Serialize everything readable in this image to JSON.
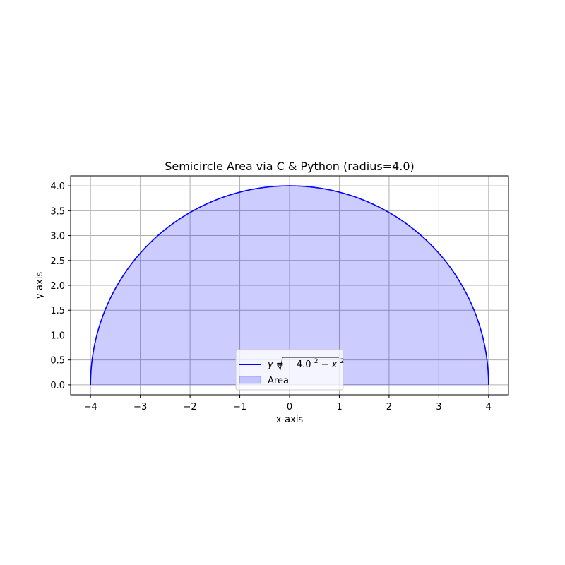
{
  "chart_data": {
    "type": "area",
    "title": "Semicircle Area via C & Python (radius=4.0)",
    "xlabel": "x-axis",
    "ylabel": "y-axis",
    "radius": 4.0,
    "xlim": [
      -4.4,
      4.4
    ],
    "ylim": [
      -0.2,
      4.2
    ],
    "x_ticks": [
      -4,
      -3,
      -2,
      -1,
      0,
      1,
      2,
      3,
      4
    ],
    "x_tick_labels": [
      "−4",
      "−3",
      "−2",
      "−1",
      "0",
      "1",
      "2",
      "3",
      "4"
    ],
    "y_ticks": [
      0.0,
      0.5,
      1.0,
      1.5,
      2.0,
      2.5,
      3.0,
      3.5,
      4.0
    ],
    "y_tick_labels": [
      "0.0",
      "0.5",
      "1.0",
      "1.5",
      "2.0",
      "2.5",
      "3.0",
      "3.5",
      "4.0"
    ],
    "grid": true,
    "legend_position": "lower center",
    "series": [
      {
        "name_prefix": "y = ",
        "name_radicand": "4.0",
        "name_exp1": "2",
        "name_minus": " − ",
        "name_var": "x",
        "name_exp2": "2",
        "kind": "line",
        "color": "#0000ff",
        "x": [
          -4.0,
          -3.98,
          -3.9,
          -3.75,
          -3.5,
          -3.0,
          -2.5,
          -2.0,
          -1.5,
          -1.0,
          -0.5,
          0.0,
          0.5,
          1.0,
          1.5,
          2.0,
          2.5,
          3.0,
          3.5,
          3.75,
          3.9,
          3.98,
          4.0
        ],
        "y": [
          0.0,
          0.4,
          0.89,
          1.39,
          1.94,
          2.65,
          3.12,
          3.46,
          3.71,
          3.87,
          3.97,
          4.0,
          3.97,
          3.87,
          3.71,
          3.46,
          3.12,
          2.65,
          1.94,
          1.39,
          0.89,
          0.4,
          0.0
        ]
      },
      {
        "name": "Area",
        "kind": "fill",
        "color": "#0000ff",
        "opacity": 0.2
      }
    ]
  }
}
